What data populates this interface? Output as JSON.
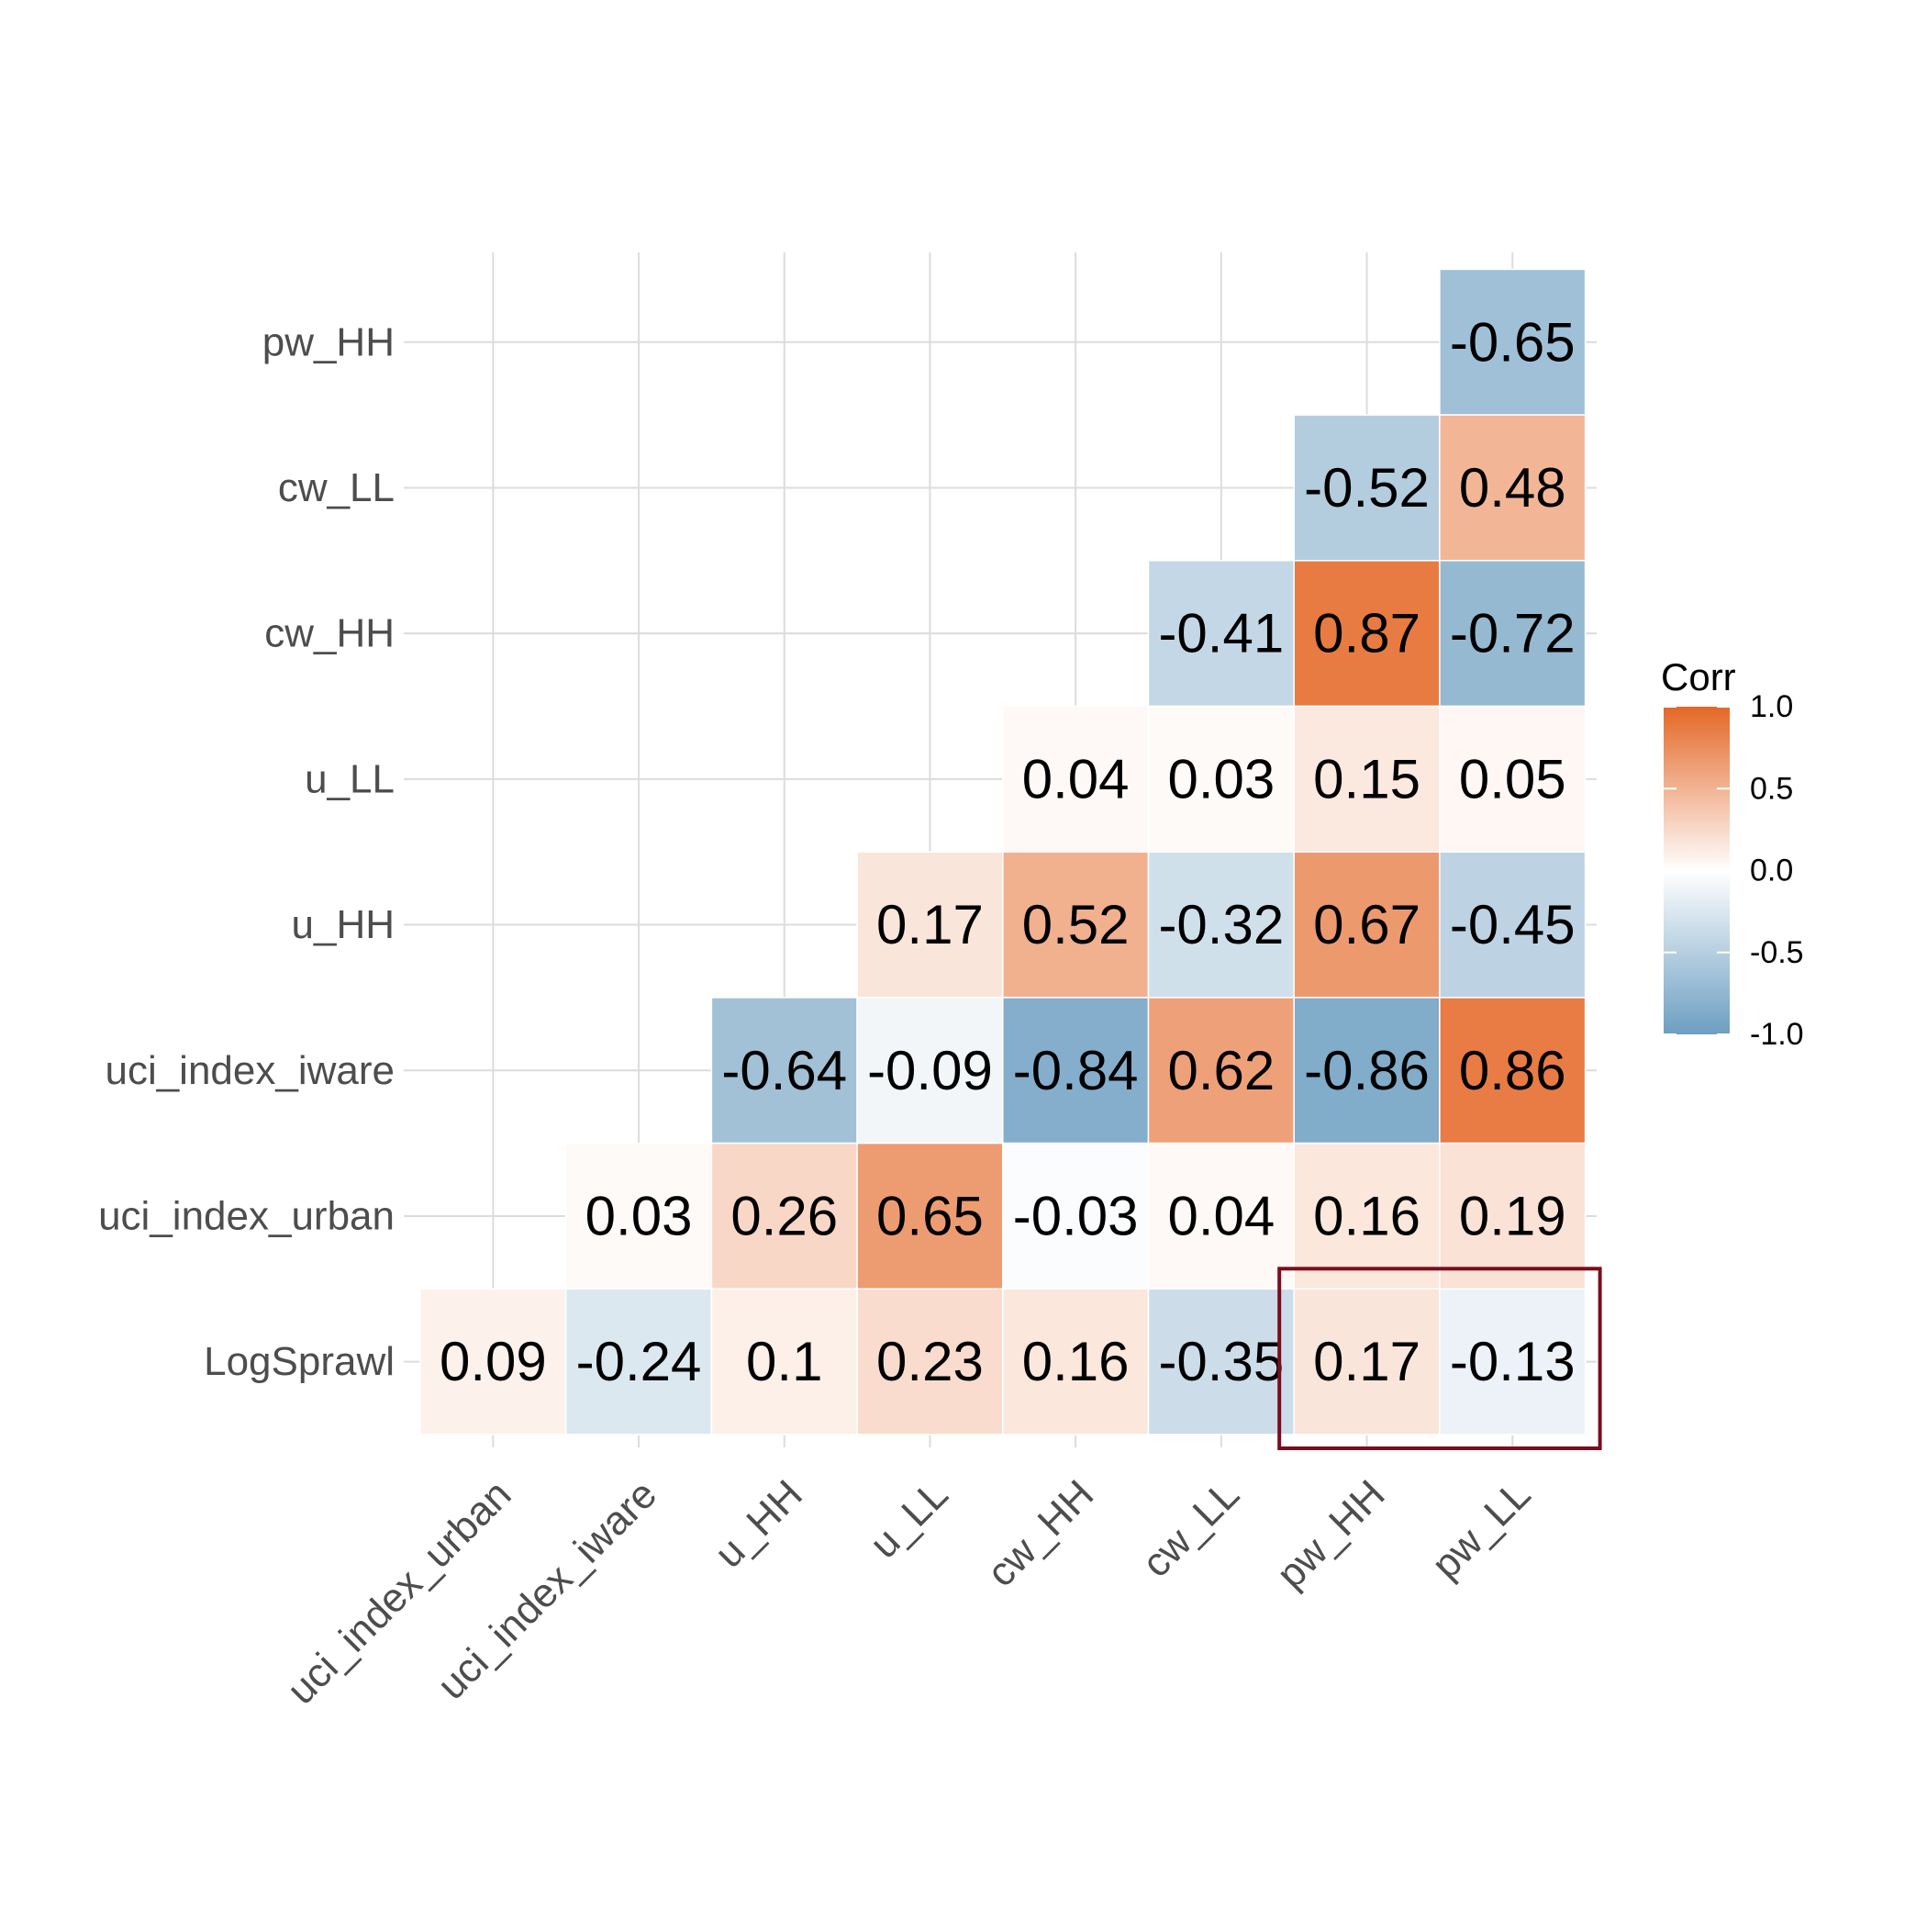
{
  "chart_data": {
    "type": "heatmap",
    "title": "",
    "xlabel": "",
    "ylabel": "",
    "x_categories": [
      "uci_index_urban",
      "uci_index_iware",
      "u_HH",
      "u_LL",
      "cw_HH",
      "cw_LL",
      "pw_HH",
      "pw_LL"
    ],
    "y_categories": [
      "LogSprawl",
      "uci_index_urban",
      "uci_index_iware",
      "u_HH",
      "u_LL",
      "cw_HH",
      "cw_LL",
      "pw_HH"
    ],
    "cells": [
      {
        "y": "pw_HH",
        "x": "pw_LL",
        "value": -0.65
      },
      {
        "y": "cw_LL",
        "x": "pw_HH",
        "value": -0.52
      },
      {
        "y": "cw_LL",
        "x": "pw_LL",
        "value": 0.48
      },
      {
        "y": "cw_HH",
        "x": "cw_LL",
        "value": -0.41
      },
      {
        "y": "cw_HH",
        "x": "pw_HH",
        "value": 0.87
      },
      {
        "y": "cw_HH",
        "x": "pw_LL",
        "value": -0.72
      },
      {
        "y": "u_LL",
        "x": "cw_HH",
        "value": 0.04
      },
      {
        "y": "u_LL",
        "x": "cw_LL",
        "value": 0.03
      },
      {
        "y": "u_LL",
        "x": "pw_HH",
        "value": 0.15
      },
      {
        "y": "u_LL",
        "x": "pw_LL",
        "value": 0.05
      },
      {
        "y": "u_HH",
        "x": "u_LL",
        "value": 0.17
      },
      {
        "y": "u_HH",
        "x": "cw_HH",
        "value": 0.52
      },
      {
        "y": "u_HH",
        "x": "cw_LL",
        "value": -0.32
      },
      {
        "y": "u_HH",
        "x": "pw_HH",
        "value": 0.67
      },
      {
        "y": "u_HH",
        "x": "pw_LL",
        "value": -0.45
      },
      {
        "y": "uci_index_iware",
        "x": "u_HH",
        "value": -0.64
      },
      {
        "y": "uci_index_iware",
        "x": "u_LL",
        "value": -0.09
      },
      {
        "y": "uci_index_iware",
        "x": "cw_HH",
        "value": -0.84
      },
      {
        "y": "uci_index_iware",
        "x": "cw_LL",
        "value": 0.62
      },
      {
        "y": "uci_index_iware",
        "x": "pw_HH",
        "value": -0.86
      },
      {
        "y": "uci_index_iware",
        "x": "pw_LL",
        "value": 0.86
      },
      {
        "y": "uci_index_urban",
        "x": "uci_index_iware",
        "value": 0.03
      },
      {
        "y": "uci_index_urban",
        "x": "u_HH",
        "value": 0.26
      },
      {
        "y": "uci_index_urban",
        "x": "u_LL",
        "value": 0.65
      },
      {
        "y": "uci_index_urban",
        "x": "cw_HH",
        "value": -0.03
      },
      {
        "y": "uci_index_urban",
        "x": "cw_LL",
        "value": 0.04
      },
      {
        "y": "uci_index_urban",
        "x": "pw_HH",
        "value": 0.16
      },
      {
        "y": "uci_index_urban",
        "x": "pw_LL",
        "value": 0.19
      },
      {
        "y": "LogSprawl",
        "x": "uci_index_urban",
        "value": 0.09
      },
      {
        "y": "LogSprawl",
        "x": "uci_index_iware",
        "value": -0.24
      },
      {
        "y": "LogSprawl",
        "x": "u_HH",
        "value": 0.1
      },
      {
        "y": "LogSprawl",
        "x": "u_LL",
        "value": 0.23
      },
      {
        "y": "LogSprawl",
        "x": "cw_HH",
        "value": 0.16
      },
      {
        "y": "LogSprawl",
        "x": "cw_LL",
        "value": -0.35
      },
      {
        "y": "LogSprawl",
        "x": "pw_HH",
        "value": 0.17
      },
      {
        "y": "LogSprawl",
        "x": "pw_LL",
        "value": -0.13
      }
    ],
    "color_scale": {
      "low": "#6d9ec1",
      "mid": "#ffffff",
      "high": "#e46726",
      "limits": [
        -1.0,
        1.0
      ]
    },
    "legend": {
      "title": "Corr",
      "ticks": [
        "1.0",
        "0.5",
        "0.0",
        "-0.5",
        "-1.0"
      ],
      "position": "right"
    },
    "highlight_box": {
      "color": "#7a0c1e",
      "y_category": "LogSprawl",
      "x_categories": [
        "pw_HH",
        "pw_LL"
      ]
    },
    "grid": true
  }
}
